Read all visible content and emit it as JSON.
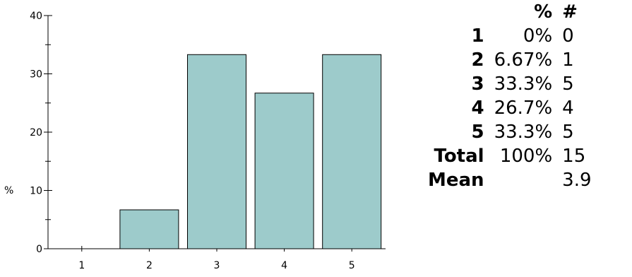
{
  "chart_data": {
    "type": "bar",
    "categories": [
      "1",
      "2",
      "3",
      "4",
      "5"
    ],
    "values": [
      0,
      6.67,
      33.3,
      26.7,
      33.3
    ],
    "ylabel": "%",
    "xlabel": "",
    "ylim": [
      0,
      40
    ],
    "yticks": [
      "0",
      "10",
      "20",
      "30",
      "40"
    ],
    "bar_color": "#9dcbcb",
    "bar_stroke": "#000000",
    "grid": false
  },
  "table": {
    "header": {
      "pct": "%",
      "count": "#"
    },
    "rows": [
      {
        "label": "1",
        "pct": "0%",
        "count": "0"
      },
      {
        "label": "2",
        "pct": "6.67%",
        "count": "1"
      },
      {
        "label": "3",
        "pct": "33.3%",
        "count": "5"
      },
      {
        "label": "4",
        "pct": "26.7%",
        "count": "4"
      },
      {
        "label": "5",
        "pct": "33.3%",
        "count": "5"
      }
    ],
    "total": {
      "label": "Total",
      "pct": "100%",
      "count": "15"
    },
    "mean": {
      "label": "Mean",
      "pct": "",
      "count": "3.9"
    }
  }
}
